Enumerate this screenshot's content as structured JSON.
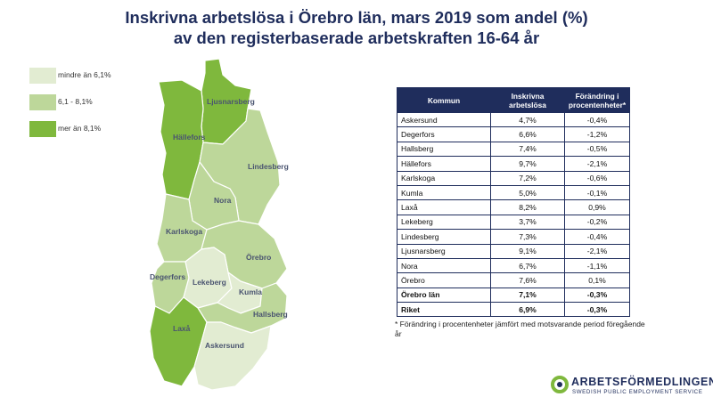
{
  "title": {
    "line1": "Inskrivna arbetslösa i Örebro län, mars 2019 som andel (%)",
    "line2": "av den registerbaserade arbetskraften 16-64 år"
  },
  "legend": {
    "items": [
      {
        "label": "mindre än 6,1%",
        "color": "#e2ecd2"
      },
      {
        "label": "6,1 - 8,1%",
        "color": "#bdd79a"
      },
      {
        "label": "mer än 8,1%",
        "color": "#7fb83d"
      }
    ]
  },
  "map": {
    "border_color": "#ffffff",
    "municipalities": [
      {
        "name": "Ljusnarsberg",
        "class": "high",
        "value": "9,1%"
      },
      {
        "name": "Hällefors",
        "class": "high",
        "value": "9,7%"
      },
      {
        "name": "Lindesberg",
        "class": "mid",
        "value": "7,3%"
      },
      {
        "name": "Nora",
        "class": "mid",
        "value": "6,7%"
      },
      {
        "name": "Karlskoga",
        "class": "mid",
        "value": "7,2%"
      },
      {
        "name": "Örebro",
        "class": "mid",
        "value": "7,6%"
      },
      {
        "name": "Degerfors",
        "class": "mid",
        "value": "6,6%"
      },
      {
        "name": "Lekeberg",
        "class": "low",
        "value": "3,7%"
      },
      {
        "name": "Kumla",
        "class": "low",
        "value": "5,0%"
      },
      {
        "name": "Hallsberg",
        "class": "mid",
        "value": "7,4%"
      },
      {
        "name": "Laxå",
        "class": "high",
        "value": "8,2%"
      },
      {
        "name": "Askersund",
        "class": "low",
        "value": "4,7%"
      }
    ]
  },
  "table": {
    "headers": [
      "Kommun",
      "Inskrivna arbetslösa",
      "Förändring i procentenheter*"
    ],
    "rows": [
      {
        "kommun": "Askersund",
        "andel": "4,7%",
        "forandring": "-0,4%",
        "bold": false
      },
      {
        "kommun": "Degerfors",
        "andel": "6,6%",
        "forandring": "-1,2%",
        "bold": false
      },
      {
        "kommun": "Hallsberg",
        "andel": "7,4%",
        "forandring": "-0,5%",
        "bold": false
      },
      {
        "kommun": "Hällefors",
        "andel": "9,7%",
        "forandring": "-2,1%",
        "bold": false
      },
      {
        "kommun": "Karlskoga",
        "andel": "7,2%",
        "forandring": "-0,6%",
        "bold": false
      },
      {
        "kommun": "Kumla",
        "andel": "5,0%",
        "forandring": "-0,1%",
        "bold": false
      },
      {
        "kommun": "Laxå",
        "andel": "8,2%",
        "forandring": "0,9%",
        "bold": false
      },
      {
        "kommun": "Lekeberg",
        "andel": "3,7%",
        "forandring": "-0,2%",
        "bold": false
      },
      {
        "kommun": "Lindesberg",
        "andel": "7,3%",
        "forandring": "-0,4%",
        "bold": false
      },
      {
        "kommun": "Ljusnarsberg",
        "andel": "9,1%",
        "forandring": "-2,1%",
        "bold": false
      },
      {
        "kommun": "Nora",
        "andel": "6,7%",
        "forandring": "-1,1%",
        "bold": false
      },
      {
        "kommun": "Örebro",
        "andel": "7,6%",
        "forandring": "0,1%",
        "bold": false
      },
      {
        "kommun": "Örebro län",
        "andel": "7,1%",
        "forandring": "-0,3%",
        "bold": true
      },
      {
        "kommun": "Riket",
        "andel": "6,9%",
        "forandring": "-0,3%",
        "bold": true
      }
    ]
  },
  "footnote": "* Förändring i procentenheter jämfört med motsvarande period föregående år",
  "logo": {
    "name": "ARBETSFÖRMEDLINGEN",
    "subtitle": "SWEDISH PUBLIC EMPLOYMENT SERVICE",
    "color_green": "#7fb83d",
    "color_navy": "#1f2d5c"
  }
}
